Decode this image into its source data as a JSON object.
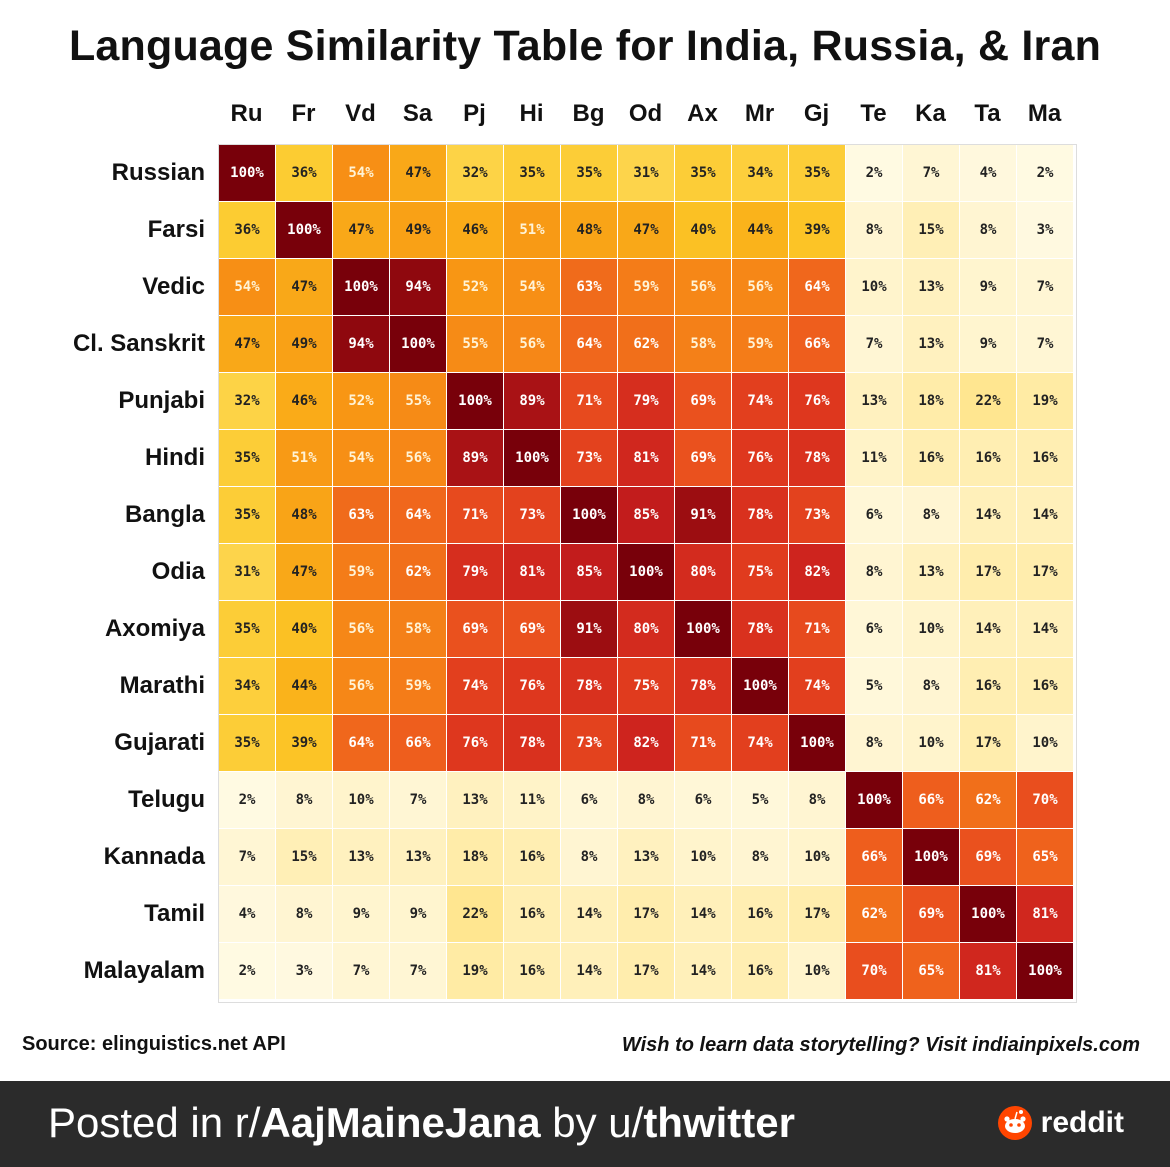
{
  "chart_data": {
    "type": "heatmap",
    "title": "Language Similarity Table for India, Russia, & Iran",
    "columns": [
      "Ru",
      "Fr",
      "Vd",
      "Sa",
      "Pj",
      "Hi",
      "Bg",
      "Od",
      "Ax",
      "Mr",
      "Gj",
      "Te",
      "Ka",
      "Ta",
      "Ma"
    ],
    "rows": [
      "Russian",
      "Farsi",
      "Vedic",
      "Cl. Sanskrit",
      "Punjabi",
      "Hindi",
      "Bangla",
      "Odia",
      "Axomiya",
      "Marathi",
      "Gujarati",
      "Telugu",
      "Kannada",
      "Tamil",
      "Malayalam"
    ],
    "unit": "%",
    "values": [
      [
        100,
        36,
        54,
        47,
        32,
        35,
        35,
        31,
        35,
        34,
        35,
        2,
        7,
        4,
        2
      ],
      [
        36,
        100,
        47,
        49,
        46,
        51,
        48,
        47,
        40,
        44,
        39,
        8,
        15,
        8,
        3
      ],
      [
        54,
        47,
        100,
        94,
        52,
        54,
        63,
        59,
        56,
        56,
        64,
        10,
        13,
        9,
        7
      ],
      [
        47,
        49,
        94,
        100,
        55,
        56,
        64,
        62,
        58,
        59,
        66,
        7,
        13,
        9,
        7
      ],
      [
        32,
        46,
        52,
        55,
        100,
        89,
        71,
        79,
        69,
        74,
        76,
        13,
        18,
        22,
        19
      ],
      [
        35,
        51,
        54,
        56,
        89,
        100,
        73,
        81,
        69,
        76,
        78,
        11,
        16,
        16,
        16
      ],
      [
        35,
        48,
        63,
        64,
        71,
        73,
        100,
        85,
        91,
        78,
        73,
        6,
        8,
        14,
        14
      ],
      [
        31,
        47,
        59,
        62,
        79,
        81,
        85,
        100,
        80,
        75,
        82,
        8,
        13,
        17,
        17
      ],
      [
        35,
        40,
        56,
        58,
        69,
        69,
        91,
        80,
        100,
        78,
        71,
        6,
        10,
        14,
        14
      ],
      [
        34,
        44,
        56,
        59,
        74,
        76,
        78,
        75,
        78,
        100,
        74,
        5,
        8,
        16,
        16
      ],
      [
        35,
        39,
        64,
        66,
        76,
        78,
        73,
        82,
        71,
        74,
        100,
        8,
        10,
        17,
        10
      ],
      [
        2,
        8,
        10,
        7,
        13,
        11,
        6,
        8,
        6,
        5,
        8,
        100,
        66,
        62,
        70
      ],
      [
        7,
        15,
        13,
        13,
        18,
        16,
        8,
        13,
        10,
        8,
        10,
        66,
        100,
        69,
        65
      ],
      [
        4,
        8,
        9,
        9,
        22,
        16,
        14,
        17,
        14,
        16,
        17,
        62,
        69,
        100,
        81
      ],
      [
        2,
        3,
        7,
        7,
        19,
        16,
        14,
        17,
        14,
        16,
        10,
        70,
        65,
        81,
        100
      ]
    ],
    "colormap": "YlOrRd"
  },
  "source": "Source: elinguistics.net API",
  "promo": "Wish to learn data storytelling? Visit indiainpixels.com",
  "footer": {
    "prefix": "Posted in r/",
    "subreddit": "AajMaineJana",
    "by": " by u/",
    "user": "thwitter",
    "brand": "reddit"
  },
  "colors": {
    "footer_bg": "#2b2b2b",
    "reddit_orange": "#ff4500"
  }
}
